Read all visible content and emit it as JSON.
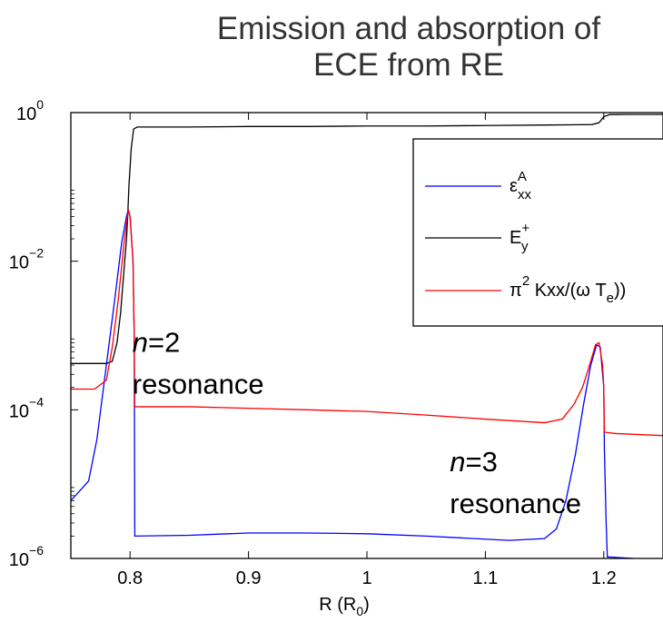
{
  "chart_data": {
    "type": "line",
    "title_line1": "Emission and absorption of",
    "title_line2": "ECE from RE",
    "xlabel": "R (R",
    "xlabel_sub": "0",
    "xlabel_close": ")",
    "ylabel": "",
    "xlim": [
      0.75,
      1.25
    ],
    "ylim": [
      1e-06,
      1
    ],
    "yscale": "log",
    "xticks": [
      {
        "value": 0.8,
        "label": "0.8"
      },
      {
        "value": 0.9,
        "label": "0.9"
      },
      {
        "value": 1.0,
        "label": "1"
      },
      {
        "value": 1.1,
        "label": "1.1"
      },
      {
        "value": 1.2,
        "label": "1.2"
      }
    ],
    "yticks": [
      {
        "value": 1e-06,
        "base": "10",
        "exp": "−6"
      },
      {
        "value": 0.0001,
        "base": "10",
        "exp": "−4"
      },
      {
        "value": 0.01,
        "base": "10",
        "exp": "−2"
      },
      {
        "value": 1,
        "base": "10",
        "exp": "0"
      }
    ],
    "grid": false,
    "legend_position": "top-right",
    "legend": [
      {
        "series": "eps",
        "text": "ε",
        "sup": "A",
        "sub": "xx",
        "color": "#0000ff"
      },
      {
        "series": "E",
        "text": "E",
        "sup": "+",
        "sub": "y",
        "color": "#000000"
      },
      {
        "series": "pi",
        "text": "π",
        "sup": "2",
        "text2": " Kxx/(ω T",
        "sub": "e",
        "text3": "))",
        "color": "#ff0000"
      }
    ],
    "annotations": [
      {
        "italic": "n",
        "rest": "=2",
        "line2": "resonance",
        "x": 0.802,
        "y": 0.0006
      },
      {
        "italic": "n",
        "rest": "=3",
        "line2": "resonance",
        "x": 1.07,
        "y": 1.5e-05
      }
    ],
    "series": [
      {
        "id": "eps",
        "color": "#0000ff",
        "points": [
          [
            0.75,
            6e-06
          ],
          [
            0.765,
            1.1e-05
          ],
          [
            0.772,
            4e-05
          ],
          [
            0.78,
            0.0004
          ],
          [
            0.787,
            0.003
          ],
          [
            0.793,
            0.018
          ],
          [
            0.797,
            0.04
          ],
          [
            0.7985,
            0.05
          ],
          [
            0.8,
            0.04
          ],
          [
            0.8025,
            0.01
          ],
          [
            0.8035,
            0.001
          ],
          [
            0.804,
            2e-06
          ],
          [
            0.85,
            2.05e-06
          ],
          [
            0.9,
            2.2e-06
          ],
          [
            0.95,
            2.2e-06
          ],
          [
            1.0,
            2.15e-06
          ],
          [
            1.05,
            2e-06
          ],
          [
            1.12,
            1.75e-06
          ],
          [
            1.15,
            1.85e-06
          ],
          [
            1.16,
            2.5e-06
          ],
          [
            1.168,
            6e-06
          ],
          [
            1.176,
            2.5e-05
          ],
          [
            1.183,
            0.00012
          ],
          [
            1.189,
            0.0004
          ],
          [
            1.194,
            0.00075
          ],
          [
            1.197,
            0.0007
          ],
          [
            1.2,
            0.0002
          ],
          [
            1.2005,
            3e-05
          ],
          [
            1.202,
            3e-06
          ],
          [
            1.203,
            1.05e-06
          ],
          [
            1.225,
            1e-06
          ],
          [
            1.25,
            9.9e-07
          ]
        ]
      },
      {
        "id": "E",
        "color": "#000000",
        "points": [
          [
            0.75,
            0.00042
          ],
          [
            0.78,
            0.00042
          ],
          [
            0.785,
            0.00045
          ],
          [
            0.789,
            0.0008
          ],
          [
            0.792,
            0.002
          ],
          [
            0.795,
            0.008
          ],
          [
            0.797,
            0.02
          ],
          [
            0.798,
            0.04
          ],
          [
            0.799,
            0.1
          ],
          [
            0.801,
            0.33
          ],
          [
            0.803,
            0.6
          ],
          [
            0.806,
            0.64
          ],
          [
            0.85,
            0.64
          ],
          [
            0.9,
            0.65
          ],
          [
            0.95,
            0.65
          ],
          [
            1.0,
            0.66
          ],
          [
            1.05,
            0.66
          ],
          [
            1.1,
            0.67
          ],
          [
            1.15,
            0.68
          ],
          [
            1.19,
            0.69
          ],
          [
            1.196,
            0.73
          ],
          [
            1.2,
            0.88
          ],
          [
            1.205,
            0.94
          ],
          [
            1.22,
            0.945
          ],
          [
            1.25,
            0.945
          ]
        ]
      },
      {
        "id": "pi",
        "color": "#ff0000",
        "points": [
          [
            0.75,
            0.00019
          ],
          [
            0.77,
            0.00019
          ],
          [
            0.78,
            0.00025
          ],
          [
            0.785,
            0.0007
          ],
          [
            0.79,
            0.003
          ],
          [
            0.795,
            0.018
          ],
          [
            0.7985,
            0.05
          ],
          [
            0.8,
            0.04
          ],
          [
            0.8025,
            0.01
          ],
          [
            0.8035,
            0.001
          ],
          [
            0.804,
            0.00011
          ],
          [
            0.85,
            0.00011
          ],
          [
            0.9,
            0.000105
          ],
          [
            0.95,
            0.0001
          ],
          [
            1.0,
            9.5e-05
          ],
          [
            1.05,
            8.5e-05
          ],
          [
            1.1,
            7.5e-05
          ],
          [
            1.15,
            6.7e-05
          ],
          [
            1.165,
            7.5e-05
          ],
          [
            1.175,
            0.00012
          ],
          [
            1.182,
            0.0002
          ],
          [
            1.188,
            0.0004
          ],
          [
            1.193,
            0.00075
          ],
          [
            1.196,
            0.0008
          ],
          [
            1.199,
            0.0004
          ],
          [
            1.2,
            0.0002
          ],
          [
            1.2005,
            5e-05
          ],
          [
            1.21,
            4.8e-05
          ],
          [
            1.25,
            4.5e-05
          ]
        ]
      }
    ]
  }
}
